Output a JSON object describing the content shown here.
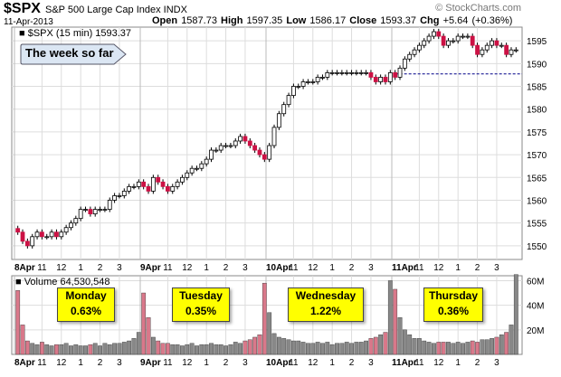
{
  "header": {
    "ticker": "$SPX",
    "name": "S&P 500 Large Cap Index INDX",
    "date": "11-Apr-2013",
    "ohlc": {
      "open_label": "Open",
      "open": "1587.73",
      "high_label": "High",
      "high": "1597.35",
      "low_label": "Low",
      "low": "1586.17",
      "close_label": "Close",
      "close": "1593.37",
      "chg_label": "Chg",
      "chg": "+5.64 (+0.36%)"
    },
    "watermark": "© StockCharts.com"
  },
  "price_legend": "$SPX (15 min) 1593.37",
  "volume_legend": "Volume 64,530,548",
  "note": "The week so far",
  "callouts": [
    {
      "day": "Monday",
      "pct": "0.63%"
    },
    {
      "day": "Tuesday",
      "pct": "0.35%"
    },
    {
      "day": "Wednesday",
      "pct": "1.22%"
    },
    {
      "day": "Thursday",
      "pct": "0.36%"
    }
  ],
  "colors": {
    "up": "#ffffff",
    "down": "#cc1144",
    "vol_up": "#888888",
    "vol_down": "#d9788a",
    "grid": "#dddddd",
    "dashed": "#000088"
  },
  "chart_data": [
    {
      "type": "candlestick",
      "title": "$SPX (15 min) 1593.37",
      "interval": "15 min",
      "x_ticks": [
        "8Apr",
        "11",
        "12",
        "1",
        "2",
        "3",
        "9Apr",
        "11",
        "12",
        "1",
        "2",
        "3",
        "10Apr",
        "11",
        "12",
        "1",
        "2",
        "3",
        "11Apr",
        "11",
        "12",
        "1",
        "2",
        "3"
      ],
      "y_ticks": [
        1550,
        1555,
        1560,
        1565,
        1570,
        1575,
        1580,
        1585,
        1590,
        1595
      ],
      "ylim": [
        1547,
        1598
      ],
      "reference_line": 1587.73,
      "series": [
        {
          "day": "8Apr",
          "close": [
            1553,
            1551,
            1550,
            1552,
            1553,
            1552,
            1552,
            1553,
            1552,
            1553,
            1554,
            1555,
            1556,
            1558,
            1558,
            1557,
            1558,
            1558,
            1558,
            1560,
            1561,
            1561,
            1562,
            1563,
            1563,
            1564
          ]
        },
        {
          "day": "9Apr",
          "close": [
            1563,
            1562,
            1565,
            1564,
            1563,
            1562,
            1563,
            1564,
            1565,
            1566,
            1567,
            1567,
            1568,
            1569,
            1571,
            1571,
            1572,
            1572,
            1572,
            1573,
            1574,
            1573,
            1572,
            1571,
            1570,
            1569
          ]
        },
        {
          "day": "10Apr",
          "close": [
            1572,
            1576,
            1579,
            1581,
            1583,
            1585,
            1585,
            1586,
            1586,
            1586,
            1587,
            1587,
            1588,
            1588,
            1588,
            1588,
            1588,
            1588,
            1588,
            1588,
            1588,
            1587,
            1586,
            1587,
            1586,
            1588
          ]
        },
        {
          "day": "11Apr",
          "close": [
            1587,
            1589,
            1591,
            1592,
            1593,
            1594,
            1595,
            1596,
            1597,
            1596,
            1594,
            1595,
            1595,
            1596,
            1596,
            1596,
            1594,
            1592,
            1593,
            1594,
            1595,
            1594,
            1594,
            1592,
            1593,
            1593
          ]
        }
      ]
    },
    {
      "type": "bar",
      "title": "Volume 64,530,548",
      "y_ticks": [
        "20M",
        "40M",
        "60M"
      ],
      "ylim": [
        0,
        64
      ],
      "values_millions": [
        52,
        24,
        11,
        9,
        8,
        10,
        8,
        7,
        8,
        8,
        9,
        7,
        8,
        7,
        7,
        8,
        9,
        7,
        9,
        8,
        9,
        9,
        10,
        11,
        13,
        18,
        50,
        30,
        14,
        11,
        9,
        9,
        8,
        8,
        7,
        8,
        9,
        7,
        8,
        8,
        9,
        8,
        8,
        7,
        8,
        10,
        9,
        11,
        12,
        14,
        16,
        58,
        34,
        17,
        14,
        13,
        12,
        11,
        11,
        10,
        9,
        9,
        10,
        9,
        10,
        8,
        9,
        9,
        10,
        9,
        10,
        10,
        11,
        13,
        14,
        16,
        18,
        60,
        53,
        30,
        20,
        16,
        13,
        13,
        11,
        10,
        9,
        10,
        10,
        10,
        9,
        10,
        9,
        10,
        11,
        10,
        12,
        12,
        13,
        14,
        16,
        18,
        24,
        65
      ]
    }
  ]
}
